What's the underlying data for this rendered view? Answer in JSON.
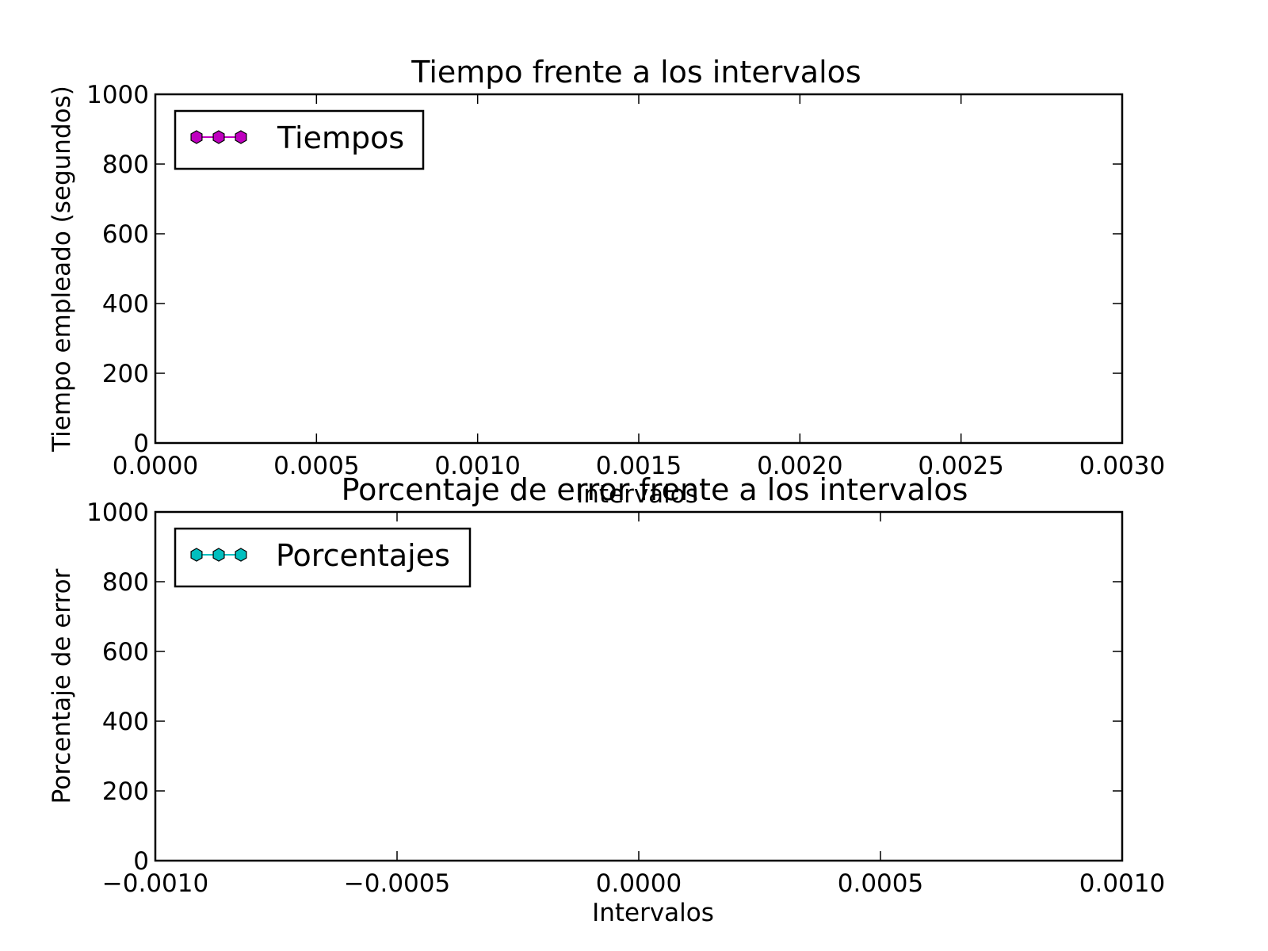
{
  "chart_data": [
    {
      "type": "line",
      "title": "Tiempo frente a los intervalos",
      "xlabel": "Intervalos",
      "ylabel": "Tiempo empleado (segundos)",
      "xlim": [
        0.0,
        0.003
      ],
      "ylim": [
        0,
        1000
      ],
      "xticks": [
        "0.0000",
        "0.0005",
        "0.0010",
        "0.0015",
        "0.0020",
        "0.0025",
        "0.0030"
      ],
      "yticks": [
        "0",
        "200",
        "400",
        "600",
        "800",
        "1000"
      ],
      "grid": false,
      "legend_position": "top-left",
      "series": [
        {
          "name": "Tiempos",
          "color": "#bf00bf",
          "marker": "hexagon",
          "x": [],
          "y": []
        }
      ]
    },
    {
      "type": "line",
      "title": "Porcentaje de error frente a los intervalos",
      "xlabel": "Intervalos",
      "ylabel": "Porcentaje de error",
      "xlim": [
        -0.001,
        0.001
      ],
      "ylim": [
        0,
        1000
      ],
      "xticks": [
        "−0.0010",
        "−0.0005",
        "0.0000",
        "0.0005",
        "0.0010"
      ],
      "yticks": [
        "0",
        "200",
        "400",
        "600",
        "800",
        "1000"
      ],
      "grid": false,
      "legend_position": "top-left",
      "series": [
        {
          "name": "Porcentajes",
          "color": "#00bfbf",
          "marker": "hexagon",
          "x": [],
          "y": []
        }
      ]
    }
  ]
}
